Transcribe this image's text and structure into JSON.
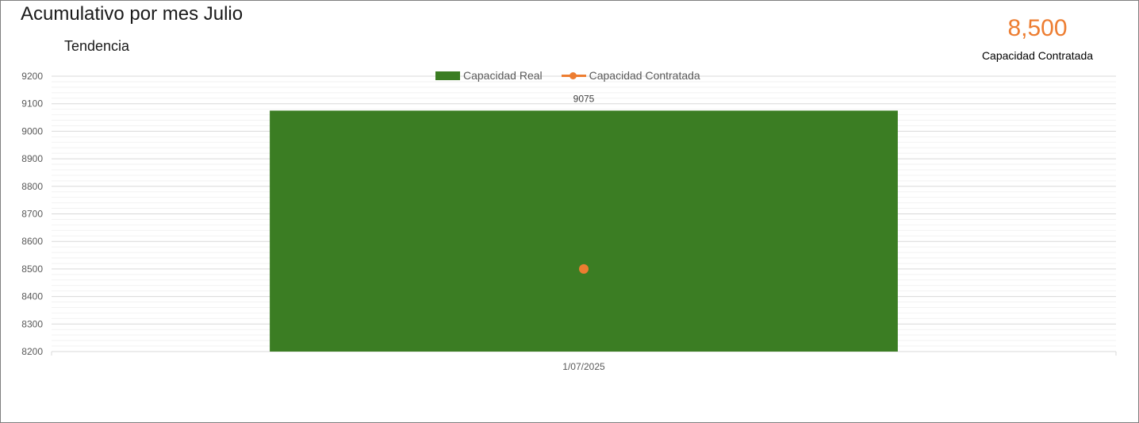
{
  "header": {
    "title": "Acumulativo por mes Julio",
    "subtitle": "Tendencia"
  },
  "kpi": {
    "value": "8,500",
    "label": "Capacidad Contratada",
    "color": "#ed7d31"
  },
  "chart_data": {
    "type": "bar",
    "categories": [
      "1/07/2025"
    ],
    "series": [
      {
        "name": "Capacidad Real",
        "type": "bar",
        "values": [
          9075
        ],
        "color": "#3b7d23",
        "data_labels": [
          "9075"
        ]
      },
      {
        "name": "Capacidad Contratada",
        "type": "line",
        "values": [
          8500
        ],
        "color": "#ed7d31"
      }
    ],
    "ylim": [
      8200,
      9200
    ],
    "yticks": [
      8200,
      8300,
      8400,
      8500,
      8600,
      8700,
      8800,
      8900,
      9000,
      9100,
      9200
    ],
    "ytick_labels": [
      "8200",
      "8300",
      "8400",
      "8500",
      "8600",
      "8700",
      "8800",
      "8900",
      "9000",
      "9100",
      "9200"
    ],
    "grid": true,
    "legend_position": "top-center",
    "xlabel": "",
    "ylabel": ""
  }
}
